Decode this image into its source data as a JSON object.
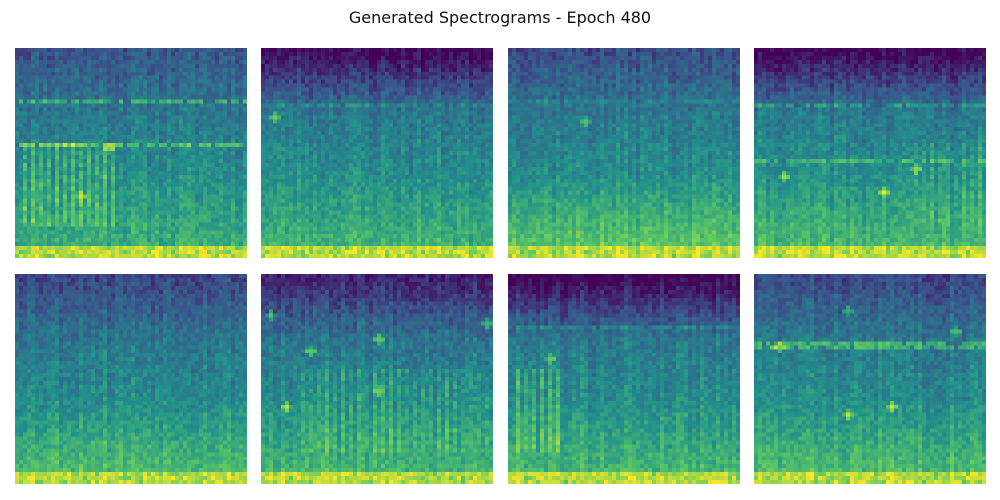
{
  "figure": {
    "title": "Generated Spectrograms - Epoch 480"
  },
  "colormap": {
    "name": "viridis",
    "stops": [
      "#440154",
      "#3b528b",
      "#21918c",
      "#5ec962",
      "#fde725"
    ]
  },
  "panels": [
    {
      "name": "spectrogram-1",
      "icon": "spectrogram-image",
      "profile": "mid-band-lines-left-streaks"
    },
    {
      "name": "spectrogram-2",
      "icon": "spectrogram-image",
      "profile": "dark-top-faint-lines"
    },
    {
      "name": "spectrogram-3",
      "icon": "spectrogram-image",
      "profile": "bright-lower-band"
    },
    {
      "name": "spectrogram-4",
      "icon": "spectrogram-image",
      "profile": "dark-top-blocky"
    },
    {
      "name": "spectrogram-5",
      "icon": "spectrogram-image",
      "profile": "smooth-gradient"
    },
    {
      "name": "spectrogram-6",
      "icon": "spectrogram-image",
      "profile": "bright-spots-vertical-bands"
    },
    {
      "name": "spectrogram-7",
      "icon": "spectrogram-image",
      "profile": "dark-top-left-streaks"
    },
    {
      "name": "spectrogram-8",
      "icon": "spectrogram-image",
      "profile": "bright-streaks-upper"
    }
  ]
}
